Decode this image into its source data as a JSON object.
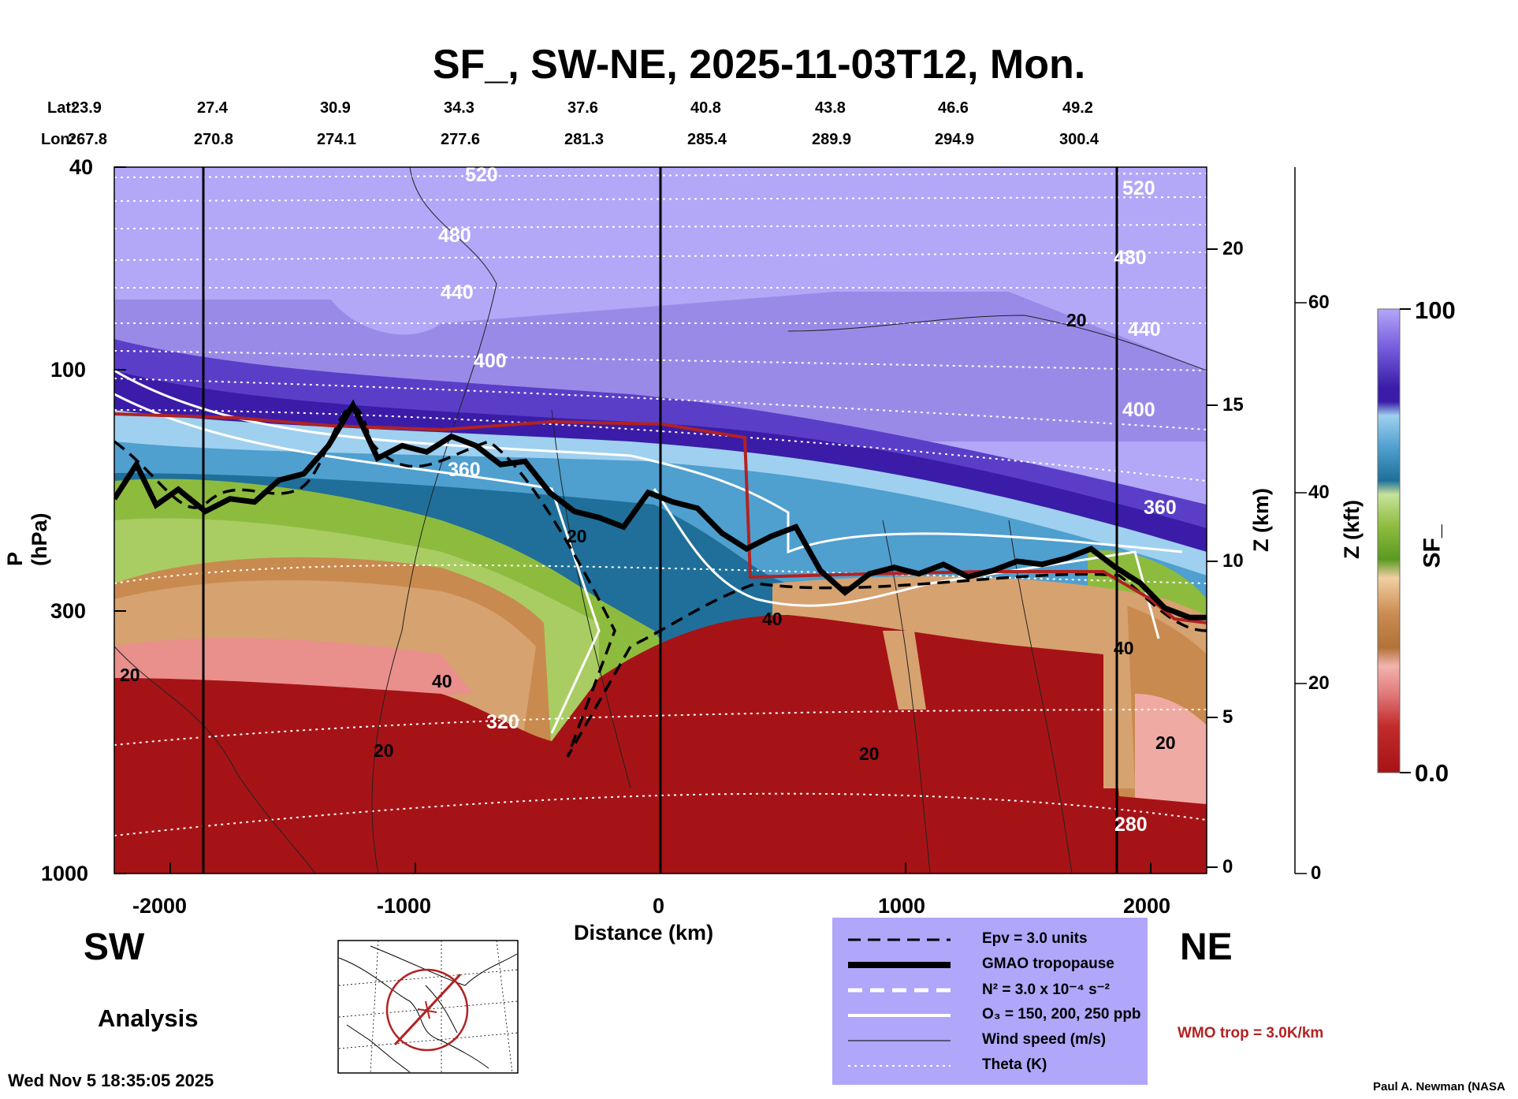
{
  "title": "SF_, SW-NE, 2025-11-03T12, Mon.",
  "lat_label": "Lat:",
  "lon_label": "Lon:",
  "lat_values": [
    "23.9",
    "27.4",
    "30.9",
    "34.3",
    "37.6",
    "40.8",
    "43.8",
    "46.6",
    "49.2"
  ],
  "lon_values": [
    "267.8",
    "270.8",
    "274.1",
    "277.6",
    "281.3",
    "285.4",
    "289.9",
    "294.9",
    "300.4"
  ],
  "chart_data": {
    "type": "heatmap",
    "title": "SF_, SW-NE, 2025-11-03T12, Mon.",
    "xlabel": "Distance (km)",
    "ylabel": "P (hPa)",
    "xlim": [
      -2220,
      2220
    ],
    "x_ticks": [
      "-2000",
      "-1000",
      "0",
      "1000",
      "2000"
    ],
    "y_scale": "log",
    "ylim": [
      1000,
      40
    ],
    "y_ticks": [
      "40",
      "100",
      "300",
      "1000"
    ],
    "z_km_label": "Z (km)",
    "z_km_ticks": [
      "0",
      "5",
      "10",
      "15",
      "20"
    ],
    "z_kft_label": "Z (kft)",
    "z_kft_ticks": [
      "0",
      "20",
      "40",
      "60"
    ],
    "colorbar_label": "SF_",
    "colorbar_max": "100",
    "colorbar_min": "0.0",
    "theta_labels": [
      "520",
      "480",
      "440",
      "400",
      "360",
      "320",
      "280"
    ],
    "wind_labels": [
      "20",
      "40"
    ],
    "tropopause_km": [
      [
        -2220,
        11.8
      ],
      [
        -2130,
        12.9
      ],
      [
        -2050,
        11.6
      ],
      [
        -1960,
        12.1
      ],
      [
        -1850,
        11.4
      ],
      [
        -1750,
        11.8
      ],
      [
        -1650,
        11.7
      ],
      [
        -1550,
        12.4
      ],
      [
        -1450,
        12.6
      ],
      [
        -1350,
        13.5
      ],
      [
        -1250,
        14.8
      ],
      [
        -1150,
        13.1
      ],
      [
        -1050,
        13.5
      ],
      [
        -950,
        13.3
      ],
      [
        -850,
        13.8
      ],
      [
        -750,
        13.5
      ],
      [
        -650,
        12.9
      ],
      [
        -550,
        13.0
      ],
      [
        -450,
        12.0
      ],
      [
        -350,
        11.4
      ],
      [
        -250,
        11.2
      ],
      [
        -150,
        10.9
      ],
      [
        -50,
        12.0
      ],
      [
        50,
        11.7
      ],
      [
        150,
        11.5
      ],
      [
        250,
        10.7
      ],
      [
        350,
        10.2
      ],
      [
        450,
        10.6
      ],
      [
        550,
        10.9
      ],
      [
        650,
        9.5
      ],
      [
        750,
        8.8
      ],
      [
        850,
        9.4
      ],
      [
        950,
        9.6
      ],
      [
        1050,
        9.4
      ],
      [
        1150,
        9.7
      ],
      [
        1250,
        9.3
      ],
      [
        1350,
        9.5
      ],
      [
        1450,
        9.8
      ],
      [
        1550,
        9.7
      ],
      [
        1650,
        9.9
      ],
      [
        1750,
        10.2
      ],
      [
        1850,
        9.6
      ],
      [
        1950,
        9.1
      ],
      [
        2050,
        8.3
      ],
      [
        2150,
        8.0
      ],
      [
        2220,
        8.0
      ]
    ],
    "legend": {
      "entries": [
        "Epv = 3.0 units",
        "GMAO tropopause",
        "N² = 3.0 x 10⁻⁴ s⁻²",
        "O₃ = 150, 200, 250 ppb",
        "Wind speed (m/s)",
        "Theta (K)"
      ],
      "wmo": "WMO trop = 3.0K/km"
    }
  },
  "footer": {
    "left_direction": "SW",
    "right_direction": "NE",
    "analysis": "Analysis",
    "timestamp": "Wed Nov  5 18:35:05 2025",
    "credit": "Paul A. Newman (NASA"
  },
  "colors": {
    "stratosphere_top": "#b3a7f8",
    "high_pv": "#3a1ca8",
    "mid_blue": "#2f7fb6",
    "green": "#8dbb3e",
    "tan": "#d6a270",
    "troposphere": "#a61316",
    "tropopause_line": "#000000",
    "wmo_line": "#b22222"
  }
}
